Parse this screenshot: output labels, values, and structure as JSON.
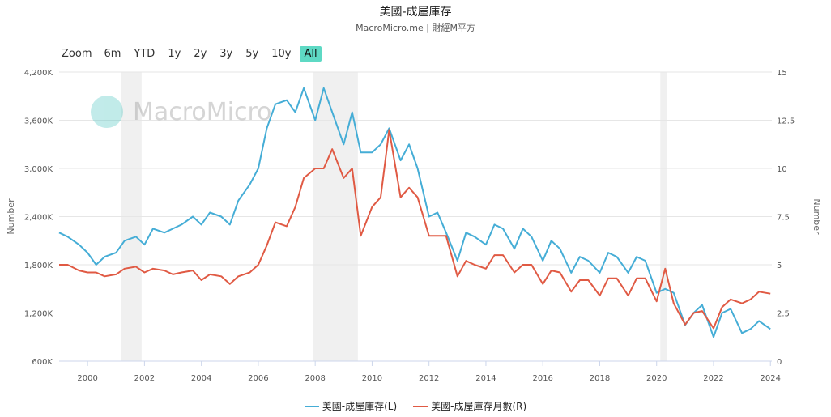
{
  "header": {
    "title": "美國-成屋庫存",
    "subtitle": "MacroMicro.me | 財經M平方"
  },
  "zoom": {
    "label": "Zoom",
    "options": [
      "6m",
      "YTD",
      "1y",
      "2y",
      "3y",
      "5y",
      "10y",
      "All"
    ],
    "active": "All"
  },
  "watermark": {
    "text": "MacroMicro"
  },
  "legend": [
    {
      "name": "美國-成屋庫存(L)",
      "color": "#45add6"
    },
    {
      "name": "美國-成屋庫存月數(R)",
      "color": "#e05a44"
    }
  ],
  "chart_data": {
    "type": "line",
    "xlabels": [
      "2000",
      "2002",
      "2004",
      "2006",
      "2008",
      "2010",
      "2012",
      "2014",
      "2016",
      "2018",
      "2020",
      "2022",
      "2024"
    ],
    "x_range": [
      1999.0,
      2024.05
    ],
    "y_left": {
      "label": "Number",
      "range": [
        600000,
        4200000
      ],
      "ticks": [
        "600K",
        "1,200K",
        "1,800K",
        "2,400K",
        "3,000K",
        "3,600K",
        "4,200K"
      ]
    },
    "y_right": {
      "label": "Number",
      "range": [
        0,
        15
      ],
      "ticks": [
        "0",
        "2.5",
        "5",
        "7.5",
        "10",
        "12.5",
        "15"
      ]
    },
    "recessions": [
      [
        2001.17,
        2001.9
      ],
      [
        2007.92,
        2009.5
      ],
      [
        2020.13,
        2020.37
      ]
    ],
    "grid": true,
    "series": [
      {
        "name": "美國-成屋庫存(L)",
        "axis": "left",
        "color": "#45add6",
        "x": [
          1999.0,
          1999.3,
          1999.7,
          2000.0,
          2000.3,
          2000.6,
          2001.0,
          2001.3,
          2001.7,
          2002.0,
          2002.3,
          2002.7,
          2003.0,
          2003.3,
          2003.7,
          2004.0,
          2004.3,
          2004.7,
          2005.0,
          2005.3,
          2005.7,
          2006.0,
          2006.3,
          2006.6,
          2007.0,
          2007.3,
          2007.6,
          2008.0,
          2008.3,
          2008.6,
          2009.0,
          2009.3,
          2009.6,
          2010.0,
          2010.3,
          2010.6,
          2011.0,
          2011.3,
          2011.6,
          2012.0,
          2012.3,
          2012.6,
          2013.0,
          2013.3,
          2013.6,
          2014.0,
          2014.3,
          2014.6,
          2015.0,
          2015.3,
          2015.6,
          2016.0,
          2016.3,
          2016.6,
          2017.0,
          2017.3,
          2017.6,
          2018.0,
          2018.3,
          2018.6,
          2019.0,
          2019.3,
          2019.6,
          2020.0,
          2020.3,
          2020.6,
          2021.0,
          2021.3,
          2021.6,
          2022.0,
          2022.3,
          2022.6,
          2023.0,
          2023.3,
          2023.6,
          2024.0
        ],
        "y": [
          2200000,
          2150000,
          2050000,
          1950000,
          1800000,
          1900000,
          1950000,
          2100000,
          2150000,
          2050000,
          2250000,
          2200000,
          2250000,
          2300000,
          2400000,
          2300000,
          2450000,
          2400000,
          2300000,
          2600000,
          2800000,
          3000000,
          3500000,
          3800000,
          3850000,
          3700000,
          4000000,
          3600000,
          4000000,
          3700000,
          3300000,
          3700000,
          3200000,
          3200000,
          3300000,
          3500000,
          3100000,
          3300000,
          3000000,
          2400000,
          2450000,
          2200000,
          1850000,
          2200000,
          2150000,
          2050000,
          2300000,
          2250000,
          2000000,
          2250000,
          2150000,
          1850000,
          2100000,
          2000000,
          1700000,
          1900000,
          1850000,
          1700000,
          1950000,
          1900000,
          1700000,
          1900000,
          1850000,
          1450000,
          1500000,
          1450000,
          1050000,
          1200000,
          1300000,
          900000,
          1200000,
          1250000,
          950000,
          1000000,
          1100000,
          1000000
        ]
      },
      {
        "name": "美國-成屋庫存月數(R)",
        "axis": "right",
        "color": "#e05a44",
        "x": [
          1999.0,
          1999.3,
          1999.7,
          2000.0,
          2000.3,
          2000.6,
          2001.0,
          2001.3,
          2001.7,
          2002.0,
          2002.3,
          2002.7,
          2003.0,
          2003.3,
          2003.7,
          2004.0,
          2004.3,
          2004.7,
          2005.0,
          2005.3,
          2005.7,
          2006.0,
          2006.3,
          2006.6,
          2007.0,
          2007.3,
          2007.6,
          2008.0,
          2008.3,
          2008.6,
          2009.0,
          2009.3,
          2009.6,
          2010.0,
          2010.3,
          2010.6,
          2011.0,
          2011.3,
          2011.6,
          2012.0,
          2012.3,
          2012.6,
          2013.0,
          2013.3,
          2013.6,
          2014.0,
          2014.3,
          2014.6,
          2015.0,
          2015.3,
          2015.6,
          2016.0,
          2016.3,
          2016.6,
          2017.0,
          2017.3,
          2017.6,
          2018.0,
          2018.3,
          2018.6,
          2019.0,
          2019.3,
          2019.6,
          2020.0,
          2020.3,
          2020.6,
          2021.0,
          2021.3,
          2021.6,
          2022.0,
          2022.3,
          2022.6,
          2023.0,
          2023.3,
          2023.6,
          2024.0
        ],
        "y": [
          5.0,
          5.0,
          4.7,
          4.6,
          4.6,
          4.4,
          4.5,
          4.8,
          4.9,
          4.6,
          4.8,
          4.7,
          4.5,
          4.6,
          4.7,
          4.2,
          4.5,
          4.4,
          4.0,
          4.4,
          4.6,
          5.0,
          6.0,
          7.2,
          7.0,
          8.0,
          9.5,
          10.0,
          10.0,
          11.0,
          9.5,
          10.0,
          6.5,
          8.0,
          8.5,
          12.0,
          8.5,
          9.0,
          8.5,
          6.5,
          6.5,
          6.5,
          4.4,
          5.2,
          5.0,
          4.8,
          5.5,
          5.5,
          4.6,
          5.0,
          5.0,
          4.0,
          4.7,
          4.6,
          3.6,
          4.2,
          4.2,
          3.4,
          4.3,
          4.3,
          3.4,
          4.3,
          4.3,
          3.1,
          4.8,
          3.0,
          1.9,
          2.5,
          2.6,
          1.7,
          2.8,
          3.2,
          3.0,
          3.2,
          3.6,
          3.5
        ]
      }
    ]
  }
}
